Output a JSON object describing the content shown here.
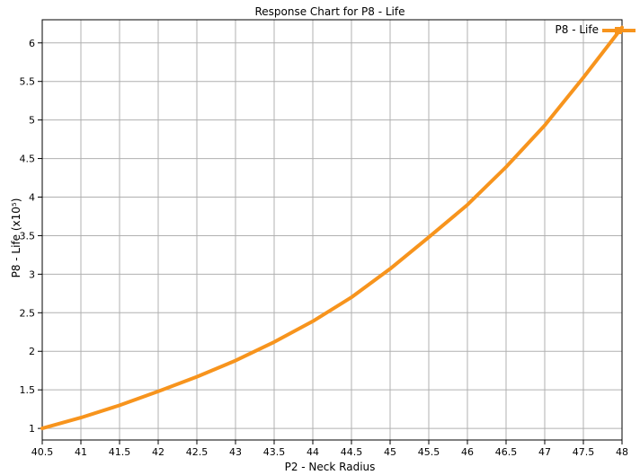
{
  "chart_data": {
    "type": "line",
    "title": "Response Chart for P8 - Life",
    "xlabel": "P2 - Neck Radius",
    "ylabel": "P8 - Life (x10⁵)",
    "xlim": [
      40.5,
      48
    ],
    "ylim": [
      0.85,
      6.3
    ],
    "xticks": [
      "40.5",
      "41",
      "41.5",
      "42",
      "42.5",
      "43",
      "43.5",
      "44",
      "44.5",
      "45",
      "45.5",
      "46",
      "46.5",
      "47",
      "47.5",
      "48"
    ],
    "yticks": [
      "1",
      "1.5",
      "2",
      "2.5",
      "3",
      "3.5",
      "4",
      "4.5",
      "5",
      "5.5",
      "6"
    ],
    "grid": true,
    "legend": "top-right",
    "colors": {
      "series": "#f7941d",
      "grid": "#b0b0b0",
      "frame": "#000000"
    },
    "series": [
      {
        "name": "P8 - Life",
        "x": [
          40.5,
          41,
          41.5,
          42,
          42.5,
          43,
          43.5,
          44,
          44.5,
          45,
          45.5,
          46,
          46.5,
          47,
          47.5,
          48
        ],
        "values": [
          1.0,
          1.14,
          1.3,
          1.48,
          1.67,
          1.88,
          2.12,
          2.39,
          2.7,
          3.07,
          3.48,
          3.9,
          4.39,
          4.93,
          5.55,
          6.2
        ]
      }
    ]
  }
}
